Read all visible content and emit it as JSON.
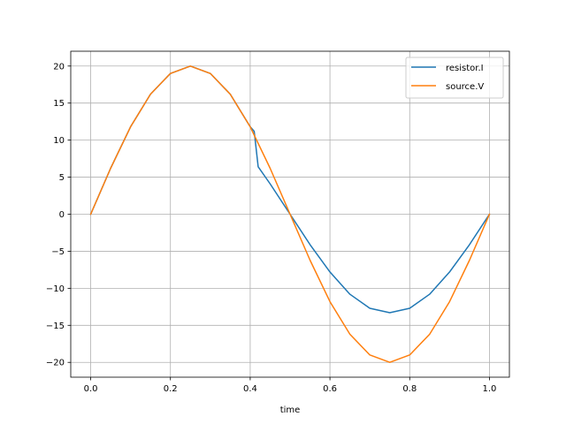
{
  "chart_data": {
    "type": "line",
    "title": "",
    "xlabel": "time",
    "ylabel": "",
    "xlim": [
      -0.05,
      1.05
    ],
    "ylim": [
      -22,
      22
    ],
    "xticks": [
      0.0,
      0.2,
      0.4,
      0.6,
      0.8,
      1.0
    ],
    "xtick_labels": [
      "0.0",
      "0.2",
      "0.4",
      "0.6",
      "0.8",
      "1.0"
    ],
    "yticks": [
      -20,
      -15,
      -10,
      -5,
      0,
      5,
      10,
      15,
      20
    ],
    "ytick_labels": [
      "−20",
      "−15",
      "−10",
      "−5",
      "0",
      "5",
      "10",
      "15",
      "20"
    ],
    "grid": true,
    "legend_position": "top-right",
    "series": [
      {
        "name": "resistor.I",
        "color": "#1f77b4",
        "x": [
          0.0,
          0.05,
          0.1,
          0.15,
          0.2,
          0.25,
          0.3,
          0.35,
          0.4,
          0.41,
          0.42,
          0.45,
          0.5,
          0.55,
          0.6,
          0.65,
          0.7,
          0.75,
          0.8,
          0.85,
          0.9,
          0.95,
          1.0
        ],
        "y": [
          0.0,
          6.2,
          11.8,
          16.2,
          19.0,
          20.0,
          19.0,
          16.2,
          11.8,
          11.2,
          6.4,
          4.1,
          0.0,
          -4.1,
          -7.8,
          -10.8,
          -12.7,
          -13.3,
          -12.7,
          -10.8,
          -7.8,
          -4.1,
          0.0
        ]
      },
      {
        "name": "source.V",
        "color": "#ff7f0e",
        "x": [
          0.0,
          0.05,
          0.1,
          0.15,
          0.2,
          0.25,
          0.3,
          0.35,
          0.4,
          0.45,
          0.5,
          0.55,
          0.6,
          0.65,
          0.7,
          0.75,
          0.8,
          0.85,
          0.9,
          0.95,
          1.0
        ],
        "y": [
          0.0,
          6.2,
          11.8,
          16.2,
          19.0,
          20.0,
          19.0,
          16.2,
          11.8,
          6.2,
          0.0,
          -6.2,
          -11.8,
          -16.2,
          -19.0,
          -20.0,
          -19.0,
          -16.2,
          -11.8,
          -6.2,
          0.0
        ]
      }
    ]
  }
}
